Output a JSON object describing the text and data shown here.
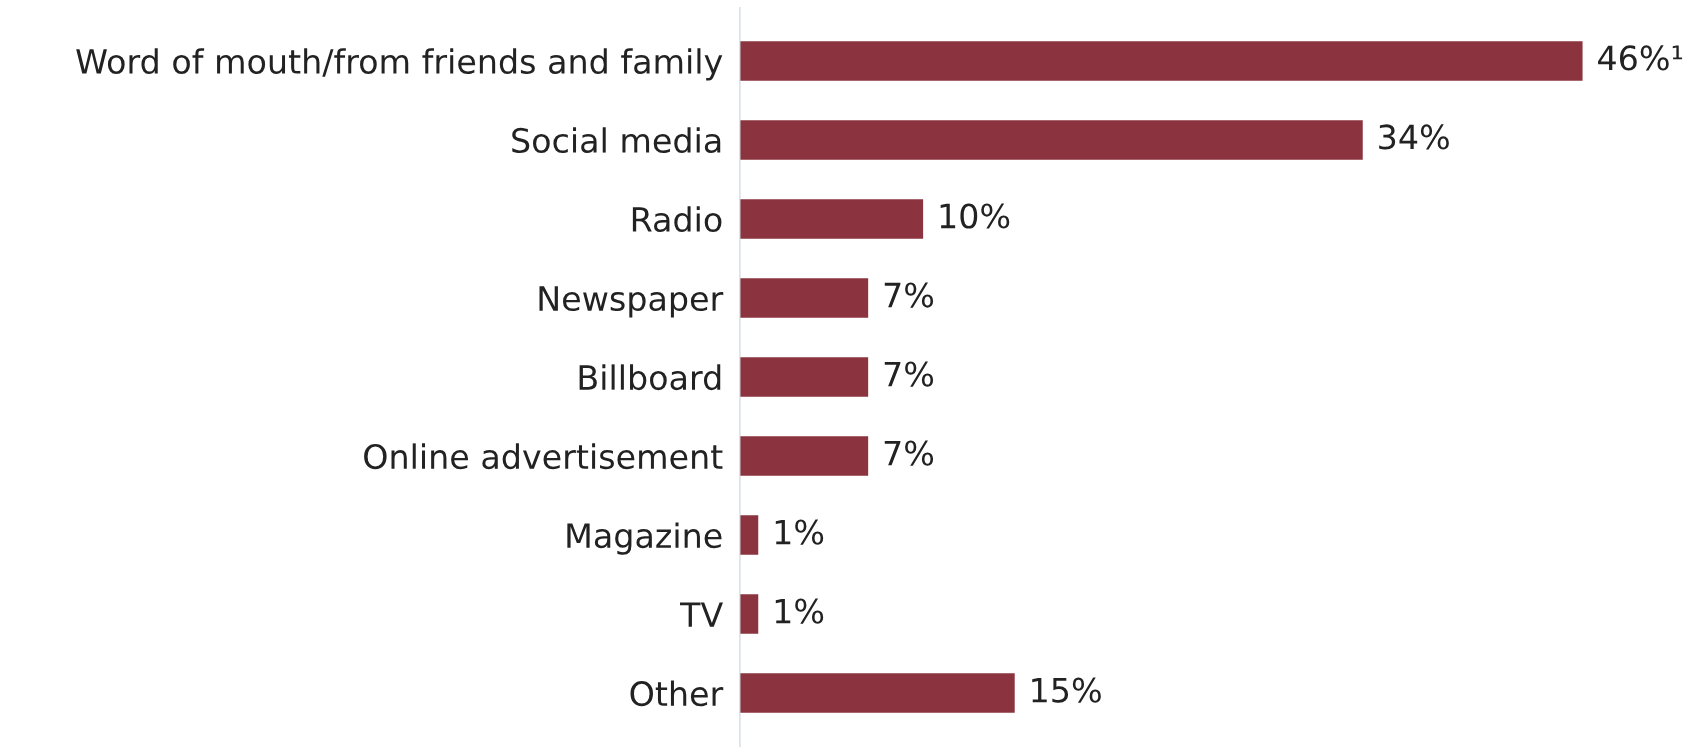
{
  "chart_data": {
    "type": "bar",
    "orientation": "horizontal",
    "categories": [
      "Word of mouth/from friends and family",
      "Social media",
      "Radio",
      "Newspaper",
      "Billboard",
      "Online advertisement",
      "Magazine",
      "TV",
      "Other"
    ],
    "values": [
      46,
      34,
      10,
      7,
      7,
      7,
      1,
      1,
      15
    ],
    "value_labels": [
      "46%¹",
      "34%",
      "10%",
      "7%",
      "7%",
      "7%",
      "1%",
      "1%",
      "15%"
    ],
    "color": "#8b333f",
    "grid": false,
    "legend": false
  }
}
